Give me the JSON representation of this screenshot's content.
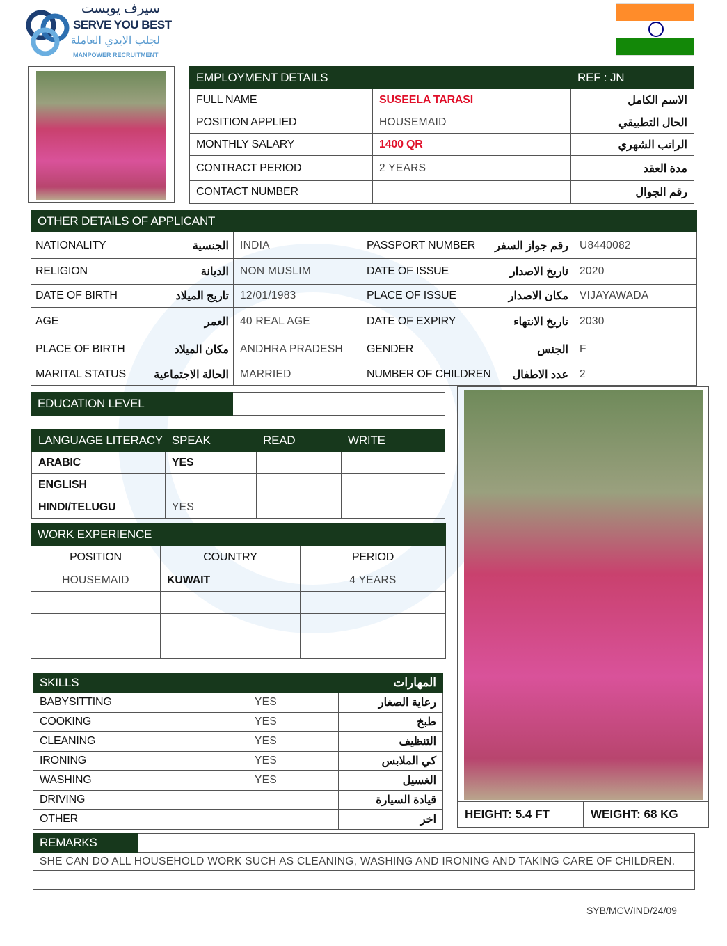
{
  "logo": {
    "arabic_top": "سيرف يوبست",
    "name": "SERVE YOU BEST",
    "arabic_sub": "لجلب الايدي العاملة",
    "tagline": "MANPOWER RECRUITMENT"
  },
  "flag": {
    "country": "India",
    "colors": [
      "#ff9933",
      "#ffffff",
      "#138808"
    ],
    "chakra": "#000080"
  },
  "employment": {
    "title": "EMPLOYMENT DETAILS",
    "ref": "REF : JN",
    "rows": [
      {
        "label": "FULL NAME",
        "value": "SUSEELA TARASI",
        "arabic": "الاسم الكامل",
        "highlight": true
      },
      {
        "label": "POSITION APPLIED",
        "value": "HOUSEMAID",
        "arabic": "الحال التطبيقي"
      },
      {
        "label": "MONTHLY SALARY",
        "value": "1400 QR",
        "arabic": "الراتب الشهري",
        "highlight": true
      },
      {
        "label": "CONTRACT PERIOD",
        "value": "2 YEARS",
        "arabic": "مدة العقد"
      },
      {
        "label": "CONTACT NUMBER",
        "value": "",
        "arabic": "رقم الجوال"
      }
    ]
  },
  "other": {
    "title": "OTHER DETAILS OF APPLICANT",
    "rows": [
      {
        "l": "NATIONALITY",
        "la": "الجنسية",
        "v": "INDIA",
        "r": "PASSPORT NUMBER",
        "ra": "رقم جواز السفر",
        "rv": "U8440082"
      },
      {
        "l": "RELIGION",
        "la": "الديانة",
        "v": "NON MUSLIM",
        "r": "DATE OF ISSUE",
        "ra": "تاريخ الاصدار",
        "rv": "2020"
      },
      {
        "l": "DATE OF BIRTH",
        "la": "تاريج الميلاد",
        "v": "12/01/1983",
        "r": "PLACE OF ISSUE",
        "ra": "مكان الاصدار",
        "rv": "VIJAYAWADA"
      },
      {
        "l": "AGE",
        "la": "العمر",
        "v": "40 REAL AGE",
        "r": "DATE OF EXPIRY",
        "ra": "تاريخ الانتهاء",
        "rv": "2030"
      },
      {
        "l": "PLACE OF BIRTH",
        "la": "مكان الميلاد",
        "v": "ANDHRA PRADESH",
        "r": "GENDER",
        "ra": "الجنس",
        "rv": "F"
      },
      {
        "l": "MARITAL STATUS",
        "la": "الحالة الاجتماعية",
        "v": "MARRIED",
        "r": "NUMBER OF CHILDREN",
        "ra": "عدد الاطفال",
        "rv": "2"
      }
    ]
  },
  "education": {
    "label": "EDUCATION LEVEL",
    "value": ""
  },
  "language": {
    "headers": [
      "LANGUAGE LITERACY",
      "SPEAK",
      "READ",
      "WRITE"
    ],
    "rows": [
      [
        "ARABIC",
        "YES",
        "",
        ""
      ],
      [
        "ENGLISH",
        "",
        "",
        ""
      ],
      [
        "HINDI/TELUGU",
        "YES",
        "",
        ""
      ]
    ]
  },
  "work": {
    "title": "WORK EXPERIENCE",
    "headers": [
      "POSITION",
      "COUNTRY",
      "PERIOD"
    ],
    "rows": [
      [
        "HOUSEMAID",
        "KUWAIT",
        "4 YEARS"
      ],
      [
        "",
        "",
        ""
      ],
      [
        "",
        "",
        ""
      ],
      [
        "",
        "",
        ""
      ]
    ]
  },
  "skills": {
    "title": "SKILLS",
    "title_ar": "المهارات",
    "rows": [
      [
        "BABYSITTING",
        "YES",
        "رعاية الصغار"
      ],
      [
        "COOKING",
        "YES",
        "طبخ"
      ],
      [
        "CLEANING",
        "YES",
        "التنظيف"
      ],
      [
        "IRONING",
        "YES",
        "كي الملابس"
      ],
      [
        "WASHING",
        "YES",
        "الغسيل"
      ],
      [
        "DRIVING",
        "",
        "قيادة السيارة"
      ],
      [
        "OTHER",
        "",
        "اخر"
      ]
    ]
  },
  "physical": {
    "height": "HEIGHT: 5.4 FT",
    "weight": "WEIGHT: 68 KG"
  },
  "remarks": {
    "title": "REMARKS",
    "text": "SHE CAN DO ALL HOUSEHOLD WORK SUCH AS CLEANING, WASHING AND IRONING AND TAKING CARE OF CHILDREN."
  },
  "footer": {
    "ref": "SYB/MCV/IND/24/09"
  }
}
